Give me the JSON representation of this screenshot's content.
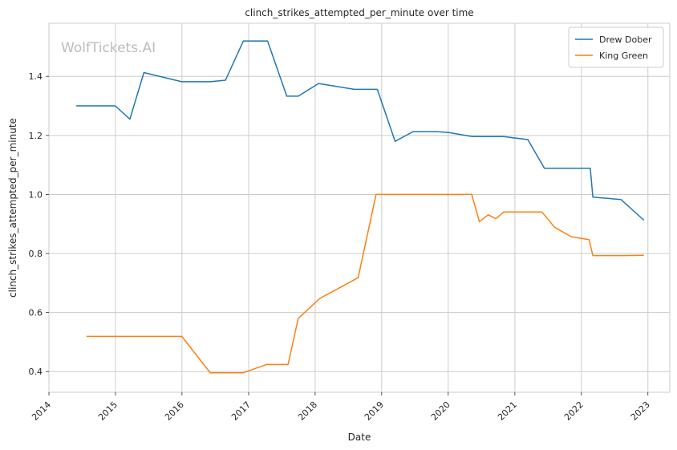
{
  "chart_data": {
    "type": "line",
    "title": "clinch_strikes_attempted_per_minute over time",
    "xlabel": "Date",
    "ylabel": "clinch_strikes_attempted_per_minute",
    "watermark": "WolfTickets.AI",
    "x_ticks": [
      "2014",
      "2015",
      "2016",
      "2017",
      "2018",
      "2019",
      "2020",
      "2021",
      "2022",
      "2023"
    ],
    "y_ticks": [
      "0.4",
      "0.6",
      "0.8",
      "1.0",
      "1.2",
      "1.4"
    ],
    "xlim": [
      "2014-01-01",
      "2023-05-01"
    ],
    "ylim": [
      0.33,
      1.58
    ],
    "grid": true,
    "legend_position": "top-right",
    "series": [
      {
        "name": "Drew Dober",
        "color": "#1f77b4",
        "points": [
          [
            "2014-05-31",
            1.3
          ],
          [
            "2014-12-31",
            1.3
          ],
          [
            "2015-03-21",
            1.255
          ],
          [
            "2015-06-06",
            1.413
          ],
          [
            "2015-12-31",
            1.382
          ],
          [
            "2016-06-04",
            1.382
          ],
          [
            "2016-08-27",
            1.387
          ],
          [
            "2016-12-03",
            1.52
          ],
          [
            "2017-04-15",
            1.52
          ],
          [
            "2017-07-29",
            1.333
          ],
          [
            "2017-09-30",
            1.333
          ],
          [
            "2018-01-20",
            1.376
          ],
          [
            "2018-08-04",
            1.356
          ],
          [
            "2018-12-08",
            1.356
          ],
          [
            "2019-03-16",
            1.18
          ],
          [
            "2019-06-22",
            1.213
          ],
          [
            "2019-11-02",
            1.213
          ],
          [
            "2020-01-04",
            1.21
          ],
          [
            "2020-05-13",
            1.196
          ],
          [
            "2020-10-31",
            1.196
          ],
          [
            "2021-03-13",
            1.186
          ],
          [
            "2021-06-12",
            1.089
          ],
          [
            "2022-02-19",
            1.089
          ],
          [
            "2022-03-05",
            0.991
          ],
          [
            "2022-08-06",
            0.983
          ],
          [
            "2022-12-10",
            0.913
          ]
        ]
      },
      {
        "name": "King Green",
        "color": "#ff7f0e",
        "points": [
          [
            "2014-07-26",
            0.519
          ],
          [
            "2015-12-31",
            0.519
          ],
          [
            "2016-06-04",
            0.396
          ],
          [
            "2016-12-03",
            0.396
          ],
          [
            "2017-04-08",
            0.424
          ],
          [
            "2017-08-05",
            0.424
          ],
          [
            "2017-09-30",
            0.58
          ],
          [
            "2018-01-27",
            0.648
          ],
          [
            "2018-08-25",
            0.718
          ],
          [
            "2018-12-01",
            1.0
          ],
          [
            "2020-05-09",
            1.0
          ],
          [
            "2020-06-20",
            0.908
          ],
          [
            "2020-08-08",
            0.931
          ],
          [
            "2020-09-19",
            0.918
          ],
          [
            "2020-11-01",
            0.941
          ],
          [
            "2021-05-29",
            0.941
          ],
          [
            "2021-08-07",
            0.889
          ],
          [
            "2021-11-06",
            0.857
          ],
          [
            "2022-02-12",
            0.847
          ],
          [
            "2022-03-05",
            0.793
          ],
          [
            "2022-08-13",
            0.793
          ],
          [
            "2022-12-10",
            0.794
          ]
        ]
      }
    ]
  }
}
